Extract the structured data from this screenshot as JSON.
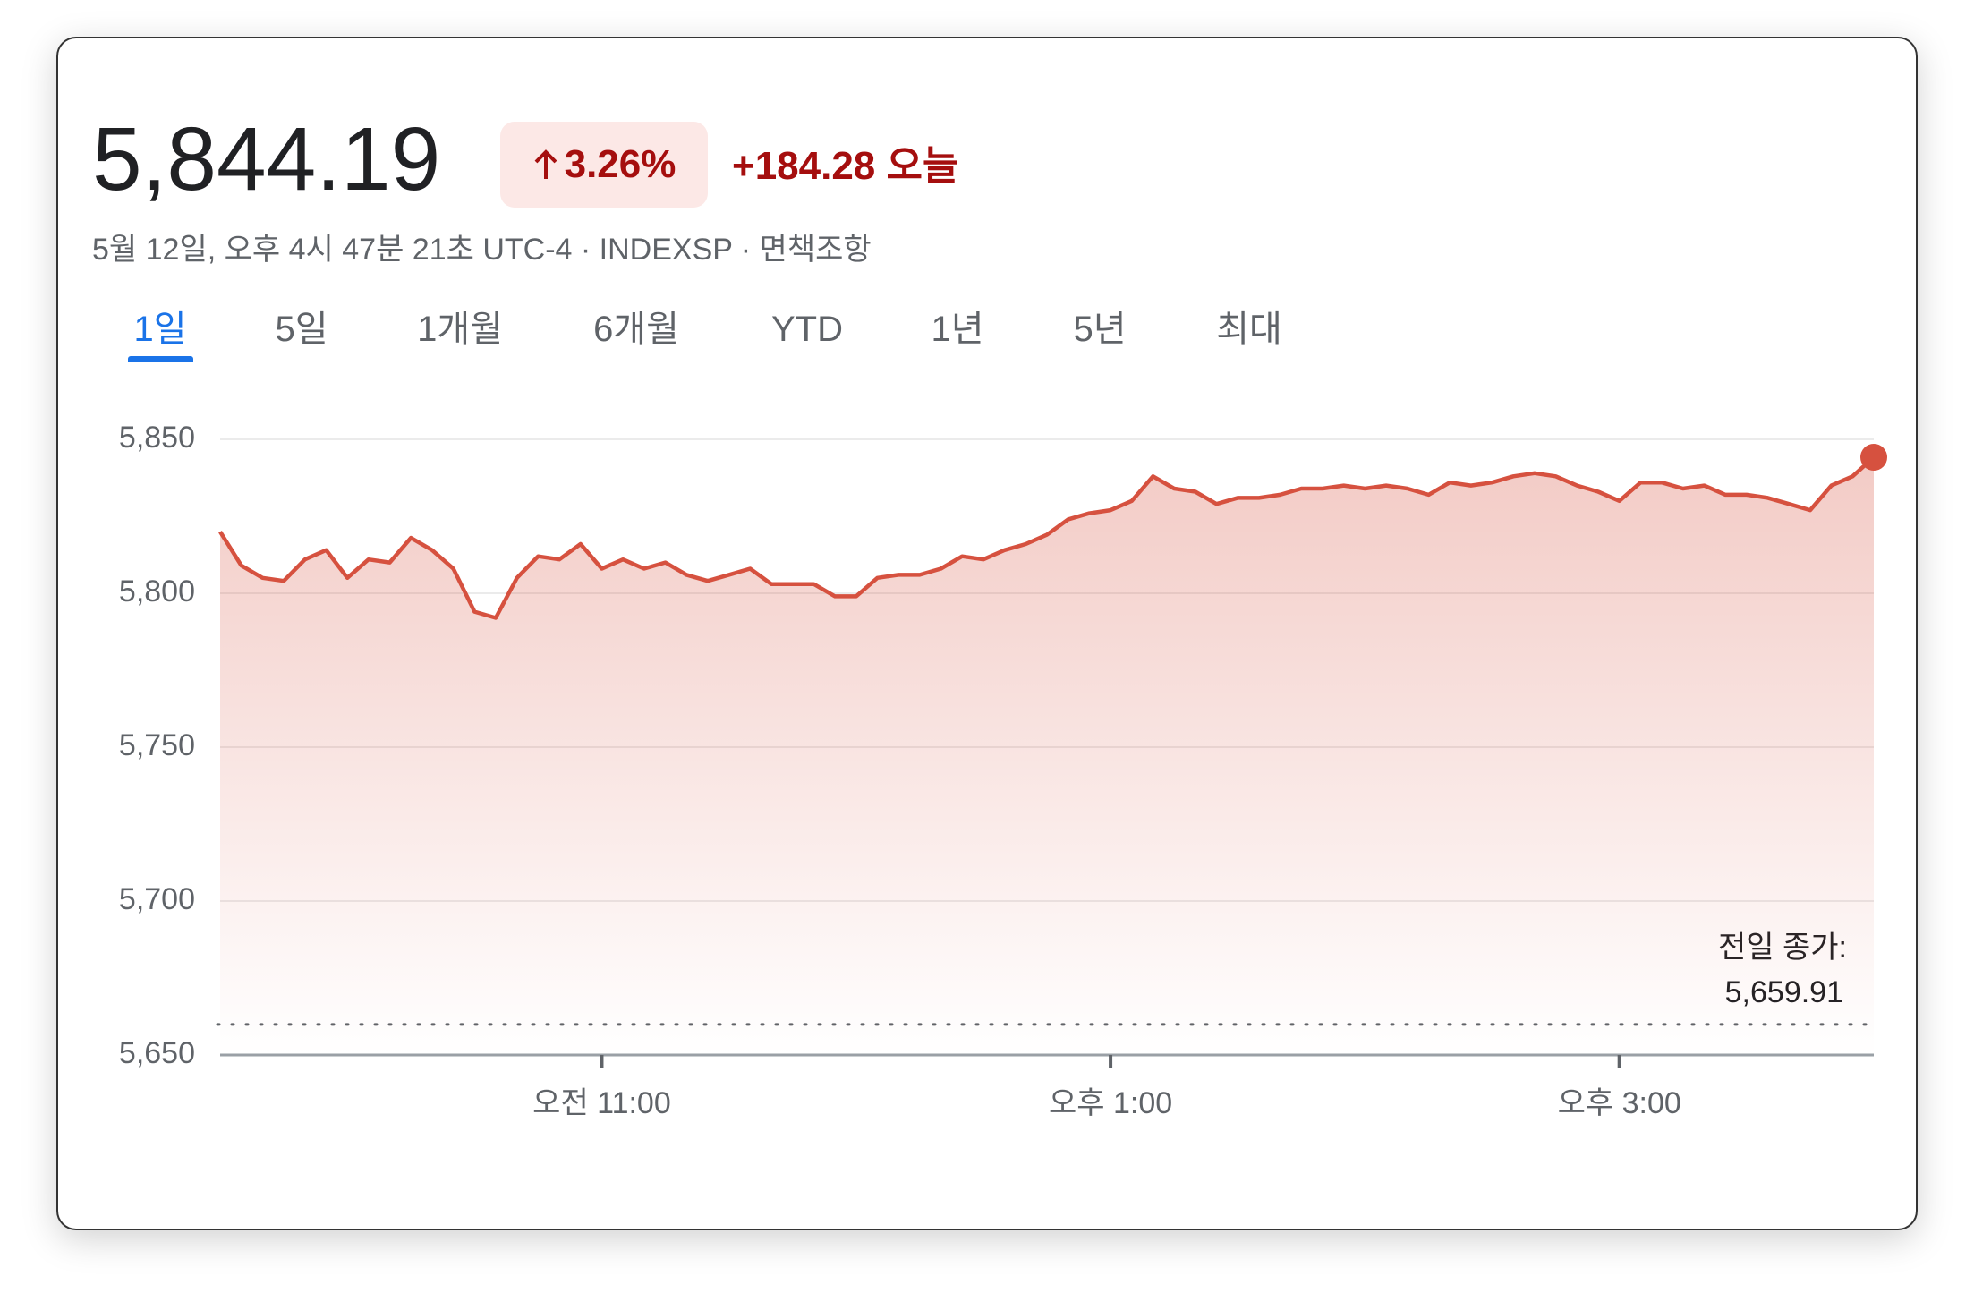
{
  "header": {
    "price": "5,844.19",
    "change_percent": "3.26%",
    "change_abs": "+184.28",
    "change_period": "오늘",
    "subtitle": "5월 12일, 오후 4시 47분 21초 UTC-4 · INDEXSP · 면책조항",
    "tabs": [
      "1일",
      "5일",
      "1개월",
      "6개월",
      "YTD",
      "1년",
      "5년",
      "최대"
    ],
    "active_tab": 0
  },
  "chart_data": {
    "type": "line",
    "color": "#d6513f",
    "x": [
      570,
      575,
      580,
      585,
      590,
      595,
      600,
      605,
      610,
      615,
      620,
      625,
      630,
      635,
      640,
      645,
      650,
      655,
      660,
      665,
      670,
      675,
      680,
      685,
      690,
      695,
      700,
      705,
      710,
      715,
      720,
      725,
      730,
      735,
      740,
      745,
      750,
      755,
      760,
      765,
      770,
      775,
      780,
      785,
      790,
      795,
      800,
      805,
      810,
      815,
      820,
      825,
      830,
      835,
      840,
      845,
      850,
      855,
      860,
      865,
      870,
      875,
      880,
      885,
      890,
      895,
      900,
      905,
      910,
      915,
      920,
      925,
      930,
      935,
      940,
      945,
      950,
      955,
      960
    ],
    "series": [
      {
        "name": "INDEXSP",
        "color": "#d6513f",
        "values": [
          5820,
          5809,
          5805,
          5804,
          5811,
          5814,
          5805,
          5811,
          5810,
          5818,
          5814,
          5808,
          5794,
          5792,
          5805,
          5812,
          5811,
          5816,
          5808,
          5811,
          5808,
          5810,
          5806,
          5804,
          5806,
          5808,
          5803,
          5803,
          5803,
          5799,
          5799,
          5805,
          5806,
          5806,
          5808,
          5812,
          5811,
          5814,
          5816,
          5819,
          5824,
          5826,
          5827,
          5830,
          5838,
          5834,
          5833,
          5829,
          5831,
          5831,
          5832,
          5834,
          5834,
          5835,
          5834,
          5835,
          5834,
          5832,
          5836,
          5835,
          5836,
          5838,
          5839,
          5838,
          5835,
          5833,
          5830,
          5836,
          5836,
          5834,
          5835,
          5832,
          5832,
          5831,
          5829,
          5827,
          5835,
          5838,
          5844.19
        ]
      }
    ],
    "xlim": [
      570,
      960
    ],
    "xticks": [
      {
        "value": 660,
        "label": "오전 11:00"
      },
      {
        "value": 780,
        "label": "오후 1:00"
      },
      {
        "value": 900,
        "label": "오후 3:00"
      }
    ],
    "ylim": [
      5650,
      5850
    ],
    "yticks": [
      {
        "value": 5650,
        "label": "5,650"
      },
      {
        "value": 5700,
        "label": "5,700"
      },
      {
        "value": 5750,
        "label": "5,750"
      },
      {
        "value": 5800,
        "label": "5,800"
      },
      {
        "value": 5850,
        "label": "5,850"
      }
    ],
    "grid": true,
    "prev_close": {
      "label": "전일 종가:",
      "value": 5659.91,
      "value_label": "5,659.91"
    }
  }
}
